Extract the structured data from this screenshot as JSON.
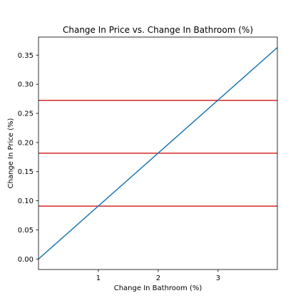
{
  "chart_data": {
    "type": "line",
    "title": "Change In Price vs. Change In Bathroom (%)",
    "xlabel": "Change In Bathroom (%)",
    "ylabel": "Change In Price (%)",
    "xlim": [
      0,
      3.99
    ],
    "ylim": [
      -0.018,
      0.381
    ],
    "xticks": [
      1,
      2,
      3
    ],
    "yticks": [
      0.0,
      0.05,
      0.1,
      0.15,
      0.2,
      0.25,
      0.3,
      0.35
    ],
    "x_tick_labels": [
      "1",
      "2",
      "3"
    ],
    "y_tick_labels": [
      "0.00",
      "0.05",
      "0.10",
      "0.15",
      "0.20",
      "0.25",
      "0.30",
      "0.35"
    ],
    "grid": false,
    "series": [
      {
        "x": [
          0,
          3.99
        ],
        "y": [
          0,
          0.363
        ],
        "color": "#1f77b4"
      }
    ],
    "hlines": [
      {
        "y": 0.0908,
        "color": "#d62728"
      },
      {
        "y": 0.1816,
        "color": "#d62728"
      },
      {
        "y": 0.2724,
        "color": "#d62728"
      }
    ]
  }
}
